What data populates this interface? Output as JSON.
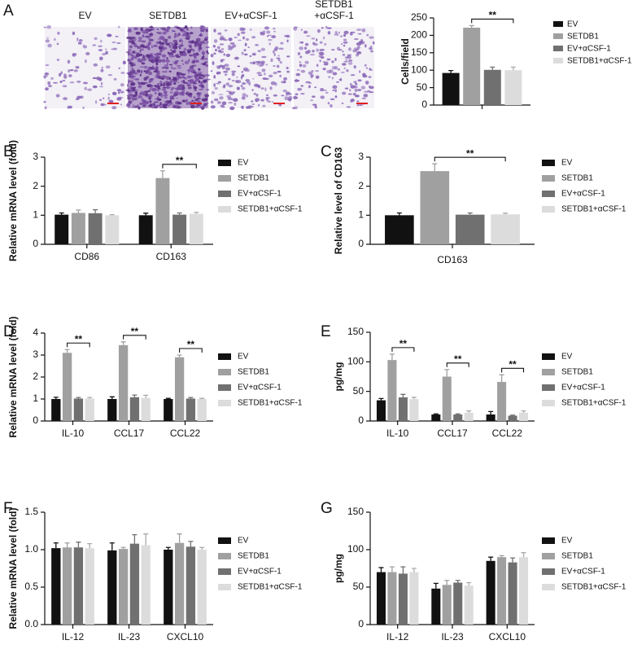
{
  "micrographs": {
    "panel": "A",
    "labels": [
      [
        "EV"
      ],
      [
        "SETDB1"
      ],
      [
        "EV+αCSF-1"
      ],
      [
        "SETDB1",
        "+αCSF-1"
      ]
    ]
  },
  "chart_data": [
    {
      "type": "bar",
      "panel": null,
      "ylabel": "Cells/field",
      "categories": [
        null
      ],
      "series": [
        {
          "name": "EV",
          "color": "#111111",
          "values": [
            92
          ],
          "errors": [
            7
          ]
        },
        {
          "name": "SETDB1",
          "color": "#a0a0a0",
          "values": [
            222
          ],
          "errors": [
            6
          ]
        },
        {
          "name": "EV+αCSF-1",
          "color": "#707070",
          "values": [
            101
          ],
          "errors": [
            8
          ]
        },
        {
          "name": "SETDB1+αCSF-1",
          "color": "#dcdcdc",
          "values": [
            100
          ],
          "errors": [
            9
          ]
        }
      ],
      "ylim": [
        0,
        250
      ],
      "yticks": [
        0,
        50,
        100,
        150,
        200,
        250
      ],
      "annotations": [
        {
          "label": "**",
          "category": 0,
          "from": 1,
          "to": 3
        }
      ]
    },
    {
      "type": "bar",
      "panel": "B",
      "ylabel": "Relative mRNA level (fold)",
      "categories": [
        "CD86",
        "CD163"
      ],
      "series": [
        {
          "name": "EV",
          "color": "#111111",
          "values": [
            1.02,
            1.0
          ],
          "errors": [
            0.06,
            0.07
          ]
        },
        {
          "name": "SETDB1",
          "color": "#a0a0a0",
          "values": [
            1.08,
            2.28
          ],
          "errors": [
            0.1,
            0.25
          ]
        },
        {
          "name": "EV+αCSF-1",
          "color": "#707070",
          "values": [
            1.07,
            1.02
          ],
          "errors": [
            0.12,
            0.06
          ]
        },
        {
          "name": "SETDB1+αCSF-1",
          "color": "#dcdcdc",
          "values": [
            1.0,
            1.05
          ],
          "errors": [
            0.02,
            0.05
          ]
        }
      ],
      "ylim": [
        0,
        3
      ],
      "yticks": [
        0,
        1,
        2,
        3
      ],
      "annotations": [
        {
          "label": "**",
          "category": 1,
          "from": 1,
          "to": 3
        }
      ]
    },
    {
      "type": "bar",
      "panel": "C",
      "ylabel": "Relative level of CD163",
      "categories": [
        "CD163"
      ],
      "series": [
        {
          "name": "EV",
          "color": "#111111",
          "values": [
            1.0
          ],
          "errors": [
            0.08
          ]
        },
        {
          "name": "SETDB1",
          "color": "#a0a0a0",
          "values": [
            2.52
          ],
          "errors": [
            0.25
          ]
        },
        {
          "name": "EV+αCSF-1",
          "color": "#707070",
          "values": [
            1.02
          ],
          "errors": [
            0.06
          ]
        },
        {
          "name": "SETDB1+αCSF-1",
          "color": "#dcdcdc",
          "values": [
            1.03
          ],
          "errors": [
            0.04
          ]
        }
      ],
      "ylim": [
        0,
        3
      ],
      "yticks": [
        0,
        1,
        2,
        3
      ],
      "annotations": [
        {
          "label": "**",
          "category": 0,
          "from": 1,
          "to": 3
        }
      ]
    },
    {
      "type": "bar",
      "panel": "D",
      "ylabel": "Relative mRNA level (fold)",
      "categories": [
        "IL-10",
        "CCL17",
        "CCL22"
      ],
      "series": [
        {
          "name": "EV",
          "color": "#111111",
          "values": [
            1.0,
            1.0,
            1.0
          ],
          "errors": [
            0.08,
            0.1,
            0.03
          ]
        },
        {
          "name": "SETDB1",
          "color": "#a0a0a0",
          "values": [
            3.1,
            3.45,
            2.9
          ],
          "errors": [
            0.15,
            0.15,
            0.1
          ]
        },
        {
          "name": "EV+αCSF-1",
          "color": "#707070",
          "values": [
            1.02,
            1.08,
            1.02
          ],
          "errors": [
            0.05,
            0.1,
            0.05
          ]
        },
        {
          "name": "SETDB1+αCSF-1",
          "color": "#dcdcdc",
          "values": [
            1.02,
            1.05,
            1.0
          ],
          "errors": [
            0.05,
            0.12,
            0.03
          ]
        }
      ],
      "ylim": [
        0,
        4
      ],
      "yticks": [
        0,
        1,
        2,
        3,
        4
      ],
      "annotations": [
        {
          "label": "**",
          "category": 0,
          "from": 1,
          "to": 3
        },
        {
          "label": "**",
          "category": 1,
          "from": 1,
          "to": 3
        },
        {
          "label": "**",
          "category": 2,
          "from": 1,
          "to": 3
        }
      ]
    },
    {
      "type": "bar",
      "panel": "E",
      "ylabel": "pg/mg",
      "categories": [
        "IL-10",
        "CCL17",
        "CCL22"
      ],
      "series": [
        {
          "name": "EV",
          "color": "#111111",
          "values": [
            35,
            11,
            11
          ],
          "errors": [
            3,
            1,
            5
          ]
        },
        {
          "name": "SETDB1",
          "color": "#a0a0a0",
          "values": [
            103,
            75,
            66
          ],
          "errors": [
            10,
            12,
            12
          ]
        },
        {
          "name": "EV+αCSF-1",
          "color": "#707070",
          "values": [
            40,
            11,
            9
          ],
          "errors": [
            5,
            1,
            1
          ]
        },
        {
          "name": "SETDB1+αCSF-1",
          "color": "#dcdcdc",
          "values": [
            37,
            14,
            14
          ],
          "errors": [
            3,
            3,
            3
          ]
        }
      ],
      "ylim": [
        0,
        150
      ],
      "yticks": [
        0,
        50,
        100,
        150
      ],
      "annotations": [
        {
          "label": "**",
          "category": 0,
          "from": 1,
          "to": 3
        },
        {
          "label": "**",
          "category": 1,
          "from": 1,
          "to": 3
        },
        {
          "label": "**",
          "category": 2,
          "from": 1,
          "to": 3
        }
      ]
    },
    {
      "type": "bar",
      "panel": "F",
      "ylabel": "Relative mRNA level (fold)",
      "categories": [
        "IL-12",
        "IL-23",
        "CXCL10"
      ],
      "series": [
        {
          "name": "EV",
          "color": "#111111",
          "values": [
            1.02,
            0.99,
            1.0
          ],
          "errors": [
            0.07,
            0.1,
            0.03
          ]
        },
        {
          "name": "SETDB1",
          "color": "#a0a0a0",
          "values": [
            1.03,
            1.01,
            1.09
          ],
          "errors": [
            0.06,
            0.02,
            0.12
          ]
        },
        {
          "name": "EV+αCSF-1",
          "color": "#707070",
          "values": [
            1.03,
            1.08,
            1.04
          ],
          "errors": [
            0.07,
            0.12,
            0.07
          ]
        },
        {
          "name": "SETDB1+αCSF-1",
          "color": "#dcdcdc",
          "values": [
            1.02,
            1.06,
            1.0
          ],
          "errors": [
            0.06,
            0.15,
            0.03
          ]
        }
      ],
      "ylim": [
        0,
        1.5
      ],
      "yticks": [
        {
          "value": 0,
          "label": "0.0"
        },
        {
          "value": 0.5,
          "label": "0.5"
        },
        {
          "value": 1,
          "label": "1.0"
        },
        {
          "value": 1.5,
          "label": "1.5"
        }
      ],
      "annotations": []
    },
    {
      "type": "bar",
      "panel": "G",
      "ylabel": "pg/mg",
      "categories": [
        "IL-12",
        "IL-23",
        "CXCL10"
      ],
      "series": [
        {
          "name": "EV",
          "color": "#111111",
          "values": [
            70,
            48,
            85
          ],
          "errors": [
            6,
            7,
            5
          ]
        },
        {
          "name": "SETDB1",
          "color": "#a0a0a0",
          "values": [
            70,
            53,
            90
          ],
          "errors": [
            7,
            6,
            2
          ]
        },
        {
          "name": "EV+αCSF-1",
          "color": "#707070",
          "values": [
            68,
            56,
            83
          ],
          "errors": [
            9,
            3,
            6
          ]
        },
        {
          "name": "SETDB1+αCSF-1",
          "color": "#dcdcdc",
          "values": [
            70,
            52,
            90
          ],
          "errors": [
            5,
            4,
            6
          ]
        }
      ],
      "ylim": [
        0,
        150
      ],
      "yticks": [
        0,
        50,
        100,
        150
      ],
      "annotations": []
    }
  ]
}
